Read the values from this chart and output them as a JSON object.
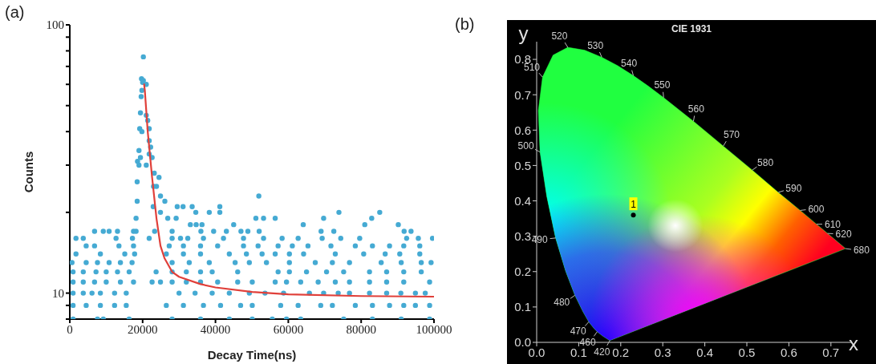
{
  "chart_data": [
    {
      "type": "scatter",
      "xlabel": "Decay Time(ns)",
      "ylabel": "Counts",
      "annotations": [
        "(a)"
      ],
      "log": "y",
      "grid": false,
      "legend": false,
      "marker": "circle",
      "xlim": [
        0,
        100000
      ],
      "xticks": [
        0,
        20000,
        40000,
        60000,
        80000,
        100000
      ],
      "ylim": [
        8,
        100
      ],
      "yticks": [
        {
          "value": 8,
          "label": null
        },
        {
          "value": 9,
          "label": null
        },
        10,
        {
          "value": 20,
          "label": null
        },
        {
          "value": 30,
          "label": null
        },
        {
          "value": 40,
          "label": null
        },
        {
          "value": 50,
          "label": null
        },
        {
          "value": 60,
          "label": null
        },
        {
          "value": 70,
          "label": null
        },
        {
          "value": 80,
          "label": null
        },
        {
          "value": 90,
          "label": null
        },
        100
      ],
      "series": [
        {
          "color": "#45aad3",
          "x": [
            20200,
            19700,
            20200,
            21000,
            20000,
            19800,
            19600,
            19400,
            19200,
            19800,
            21000,
            21400,
            21800,
            19000,
            18600,
            19400,
            19000,
            21000,
            21800,
            22200,
            21800,
            22600,
            18500,
            23200,
            24500,
            23000,
            23800,
            18500,
            24900,
            26100,
            18200,
            24900,
            26900,
            22900,
            23300,
            21800,
            51900,
            29500,
            31100,
            33600,
            34600,
            38300,
            41200,
            41200,
            73900,
            85100,
            82900,
            69700,
            51100,
            53200,
            56400,
            64100,
            81000,
            90200,
            45000,
            29200,
            33100,
            34700,
            36300,
            6800,
            9200,
            10800,
            13100,
            17500,
            18200,
            28100,
            36000,
            39500,
            43000,
            47000,
            48900,
            52000,
            69000,
            72500,
            91800,
            93700,
            1700,
            3700,
            12700,
            17200,
            28100,
            30400,
            32400,
            36700,
            42200,
            47700,
            53200,
            58300,
            62700,
            69300,
            74400,
            79600,
            92500,
            95700,
            99600,
            4500,
            6800,
            13500,
            17500,
            27300,
            31200,
            35900,
            40600,
            47700,
            51700,
            57200,
            61100,
            65400,
            71700,
            78400,
            83100,
            87800,
            91700,
            96100,
            1700,
            8400,
            15100,
            17800,
            26500,
            31200,
            35900,
            43800,
            48500,
            52800,
            56400,
            60300,
            64200,
            72900,
            80700,
            86600,
            90600,
            96100,
            600,
            4500,
            7600,
            10800,
            13900,
            17100,
            28100,
            32800,
            38300,
            45400,
            49300,
            54000,
            60300,
            67400,
            72100,
            76800,
            85500,
            91000,
            96500,
            99200,
            900,
            3700,
            7200,
            10000,
            13100,
            16300,
            23700,
            28100,
            32000,
            35900,
            39100,
            46100,
            57200,
            60300,
            65000,
            70500,
            75200,
            82300,
            87000,
            91700,
            96500,
            900,
            3700,
            6800,
            10000,
            13900,
            17500,
            22600,
            24900,
            28100,
            32000,
            35900,
            40600,
            46100,
            50100,
            56400,
            59500,
            63400,
            68200,
            72900,
            76800,
            82300,
            87000,
            91700,
            98800,
            900,
            3700,
            6100,
            8400,
            12300,
            15500,
            30000,
            34400,
            39100,
            43800,
            49300,
            53600,
            58700,
            65800,
            69700,
            73700,
            76800,
            82300,
            87000,
            90900,
            94900,
            97600,
            900,
            4500,
            8400,
            12300,
            15500,
            26500,
            31200,
            36700,
            41400,
            46900,
            50100,
            57900,
            62700,
            68900,
            72100,
            78400,
            83100,
            87800,
            91700,
            94900,
            98800,
            900,
            7600,
            9200,
            16300,
            28100,
            35900,
            43800,
            50100,
            55600,
            59500,
            63400,
            75200,
            83100,
            91000,
            98800
          ],
          "values": [
            76,
            63,
            62,
            60,
            61,
            57,
            54,
            47,
            41,
            40,
            46,
            44,
            41,
            34,
            31,
            32,
            30,
            30,
            37,
            35,
            33,
            32,
            26,
            28,
            27,
            25,
            25,
            22,
            23,
            22,
            19,
            20,
            19,
            21,
            17,
            16,
            23,
            21,
            21,
            21,
            20,
            20,
            21,
            20,
            20,
            20,
            19,
            19,
            19,
            19,
            19,
            18,
            18,
            18,
            18,
            19,
            18,
            18,
            18,
            17,
            17,
            17,
            17,
            17,
            17,
            17,
            17,
            17,
            17,
            17,
            17,
            17,
            17,
            17,
            17,
            17,
            16,
            16,
            16,
            16,
            16,
            16,
            16,
            16,
            16,
            16,
            16,
            16,
            16,
            16,
            16,
            16,
            16,
            16,
            16,
            15,
            15,
            15,
            15,
            15,
            15,
            15,
            15,
            15,
            15,
            15,
            15,
            15,
            15,
            15,
            15,
            15,
            15,
            15,
            14,
            14,
            14,
            14,
            14,
            14,
            14,
            14,
            14,
            14,
            14,
            14,
            14,
            14,
            14,
            14,
            14,
            14,
            13,
            13,
            13,
            13,
            13,
            13,
            13,
            13,
            13,
            13,
            13,
            13,
            13,
            13,
            13,
            13,
            13,
            13,
            13,
            13,
            12,
            12,
            12,
            12,
            12,
            12,
            12,
            12,
            12,
            12,
            12,
            12,
            12,
            12,
            12,
            12,
            12,
            12,
            12,
            12,
            12,
            11,
            11,
            11,
            11,
            11,
            11,
            11,
            11,
            11,
            11,
            11,
            11,
            11,
            11,
            11,
            11,
            11,
            11,
            11,
            11,
            11,
            11,
            11,
            11,
            10,
            10,
            10,
            10,
            10,
            10,
            10,
            10,
            10,
            10,
            10,
            10,
            10,
            10,
            10,
            10,
            10,
            10,
            10,
            10,
            10,
            10,
            9,
            9,
            9,
            9,
            9,
            9,
            9,
            9,
            9,
            9,
            9,
            9,
            9,
            9,
            9,
            9,
            9,
            9,
            9,
            9,
            9,
            8,
            8,
            8,
            8,
            8,
            8,
            8,
            8,
            8,
            8,
            8,
            8,
            8,
            8,
            8
          ]
        },
        {
          "type": "line",
          "marker": "none",
          "color": "#e0403a",
          "x": [
            20400,
            20600,
            21400,
            22600,
            23800,
            24900,
            26000,
            28100,
            30000,
            35900,
            40000,
            50100,
            60000,
            80000,
            100000
          ],
          "values": [
            60,
            57,
            40,
            27,
            19,
            15,
            13.5,
            12,
            11.5,
            10.8,
            10.5,
            10.1,
            9.9,
            9.75,
            9.7
          ]
        }
      ]
    },
    {
      "type": "scatter",
      "title": "CIE 1931",
      "xlabel": "x",
      "ylabel": "y",
      "log": false,
      "grid": false,
      "legend": false,
      "marker": "circle",
      "xlim": [
        0,
        0.75
      ],
      "xticks": [
        {
          "value": 0,
          "label": "0.0"
        },
        0.1,
        0.2,
        0.3,
        0.4,
        0.5,
        0.6,
        0.7
      ],
      "ylim": [
        0,
        0.85
      ],
      "yticks": [
        {
          "value": 0,
          "label": "0.0"
        },
        0.1,
        0.2,
        0.3,
        0.4,
        0.5,
        0.6,
        0.7,
        0.8
      ],
      "annotations": [
        "(b)",
        {
          "text": "420",
          "x": 0.174,
          "y": 0.005
        },
        {
          "text": "460",
          "x": 0.144,
          "y": 0.03
        },
        {
          "text": "470",
          "x": 0.124,
          "y": 0.058
        },
        {
          "text": "480",
          "x": 0.091,
          "y": 0.133
        },
        {
          "text": "490",
          "x": 0.045,
          "y": 0.295
        },
        {
          "text": "500",
          "x": 0.008,
          "y": 0.538
        },
        {
          "text": "510",
          "x": 0.014,
          "y": 0.75
        },
        {
          "text": "520",
          "x": 0.074,
          "y": 0.834
        },
        {
          "text": "530",
          "x": 0.155,
          "y": 0.806
        },
        {
          "text": "540",
          "x": 0.23,
          "y": 0.754
        },
        {
          "text": "550",
          "x": 0.302,
          "y": 0.692
        },
        {
          "text": "560",
          "x": 0.373,
          "y": 0.625
        },
        {
          "text": "570",
          "x": 0.444,
          "y": 0.555
        },
        {
          "text": "580",
          "x": 0.513,
          "y": 0.487
        },
        {
          "text": "590",
          "x": 0.575,
          "y": 0.424
        },
        {
          "text": "600",
          "x": 0.627,
          "y": 0.373
        },
        {
          "text": "610",
          "x": 0.666,
          "y": 0.334
        },
        {
          "text": "620",
          "x": 0.692,
          "y": 0.308
        },
        {
          "text": "680",
          "x": 0.735,
          "y": 0.265
        }
      ],
      "series": [
        {
          "type": "area",
          "marker": "none",
          "color": "#20ff40",
          "x": [
            0.174,
            0.157,
            0.144,
            0.136,
            0.124,
            0.11,
            0.091,
            0.069,
            0.045,
            0.024,
            0.008,
            0.004,
            0.014,
            0.039,
            0.074,
            0.114,
            0.155,
            0.193,
            0.23,
            0.266,
            0.302,
            0.373,
            0.444,
            0.513,
            0.575,
            0.627,
            0.666,
            0.692,
            0.735,
            0.174
          ],
          "values": [
            0.005,
            0.018,
            0.03,
            0.04,
            0.058,
            0.087,
            0.133,
            0.201,
            0.295,
            0.413,
            0.538,
            0.655,
            0.75,
            0.812,
            0.834,
            0.826,
            0.806,
            0.782,
            0.754,
            0.724,
            0.692,
            0.625,
            0.555,
            0.487,
            0.424,
            0.373,
            0.334,
            0.308,
            0.265,
            0.005
          ]
        },
        {
          "name": "1",
          "color": "#000000",
          "x": [
            0.23
          ],
          "values": [
            0.36
          ]
        }
      ]
    }
  ]
}
